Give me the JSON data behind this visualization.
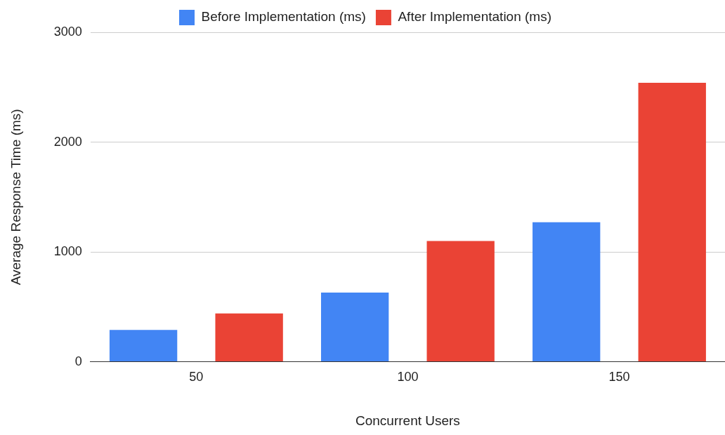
{
  "chart_data": {
    "type": "bar",
    "xlabel": "Concurrent Users",
    "ylabel": "Average Response Time (ms)",
    "categories": [
      "50",
      "100",
      "150"
    ],
    "series": [
      {
        "name": "Before Implementation (ms)",
        "color": "#4285f4",
        "values": [
          290,
          630,
          1270
        ]
      },
      {
        "name": "After Implementation (ms)",
        "color": "#ea4335",
        "values": [
          440,
          1100,
          2540
        ]
      }
    ],
    "ylim": [
      0,
      3000
    ],
    "yticks": [
      0,
      1000,
      2000,
      3000
    ],
    "grid": "y",
    "legend": "top"
  }
}
